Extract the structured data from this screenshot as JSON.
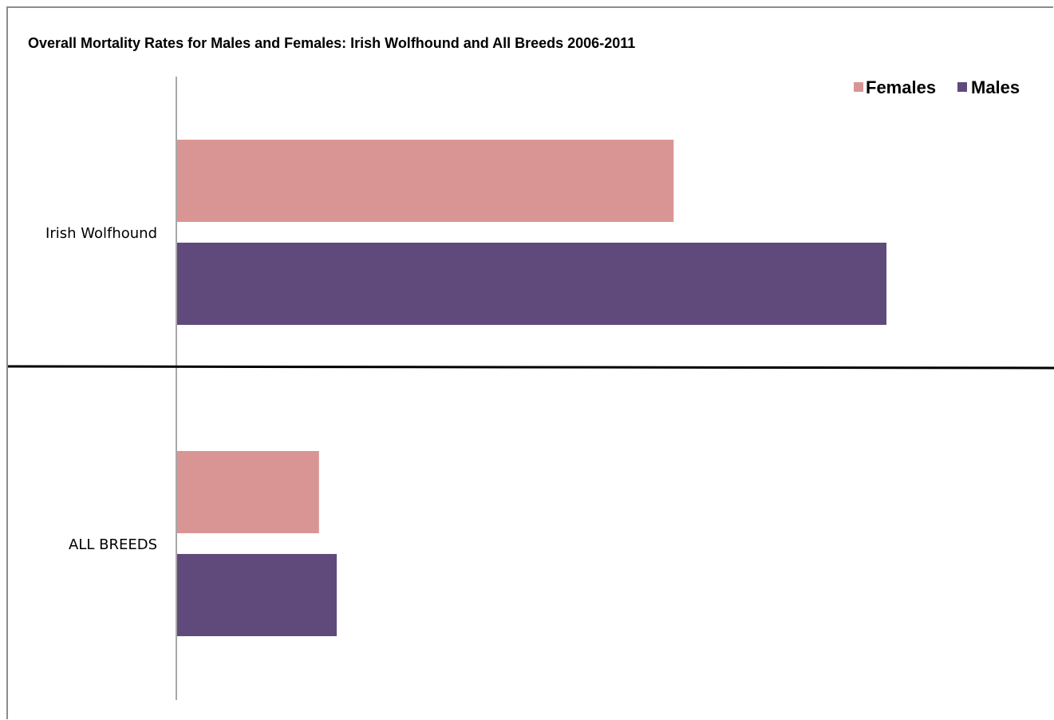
{
  "chart_data": {
    "type": "bar",
    "orientation": "horizontal",
    "title": "Overall Mortality Rates for Males and Females: Irish Wolfhound and All Breeds 2006-2011",
    "xlabel": "",
    "ylabel": "",
    "categories": [
      "Irish Wolfhound",
      "ALL BREEDS"
    ],
    "series": [
      {
        "name": "Females",
        "color": "#d99594",
        "values": [
          70,
          20
        ]
      },
      {
        "name": "Males",
        "color": "#604a7b",
        "values": [
          100,
          22.5
        ]
      }
    ],
    "xlim": [
      0,
      100
    ],
    "legend_position": "top-right",
    "grid": false,
    "x_ticks_shown": false
  }
}
